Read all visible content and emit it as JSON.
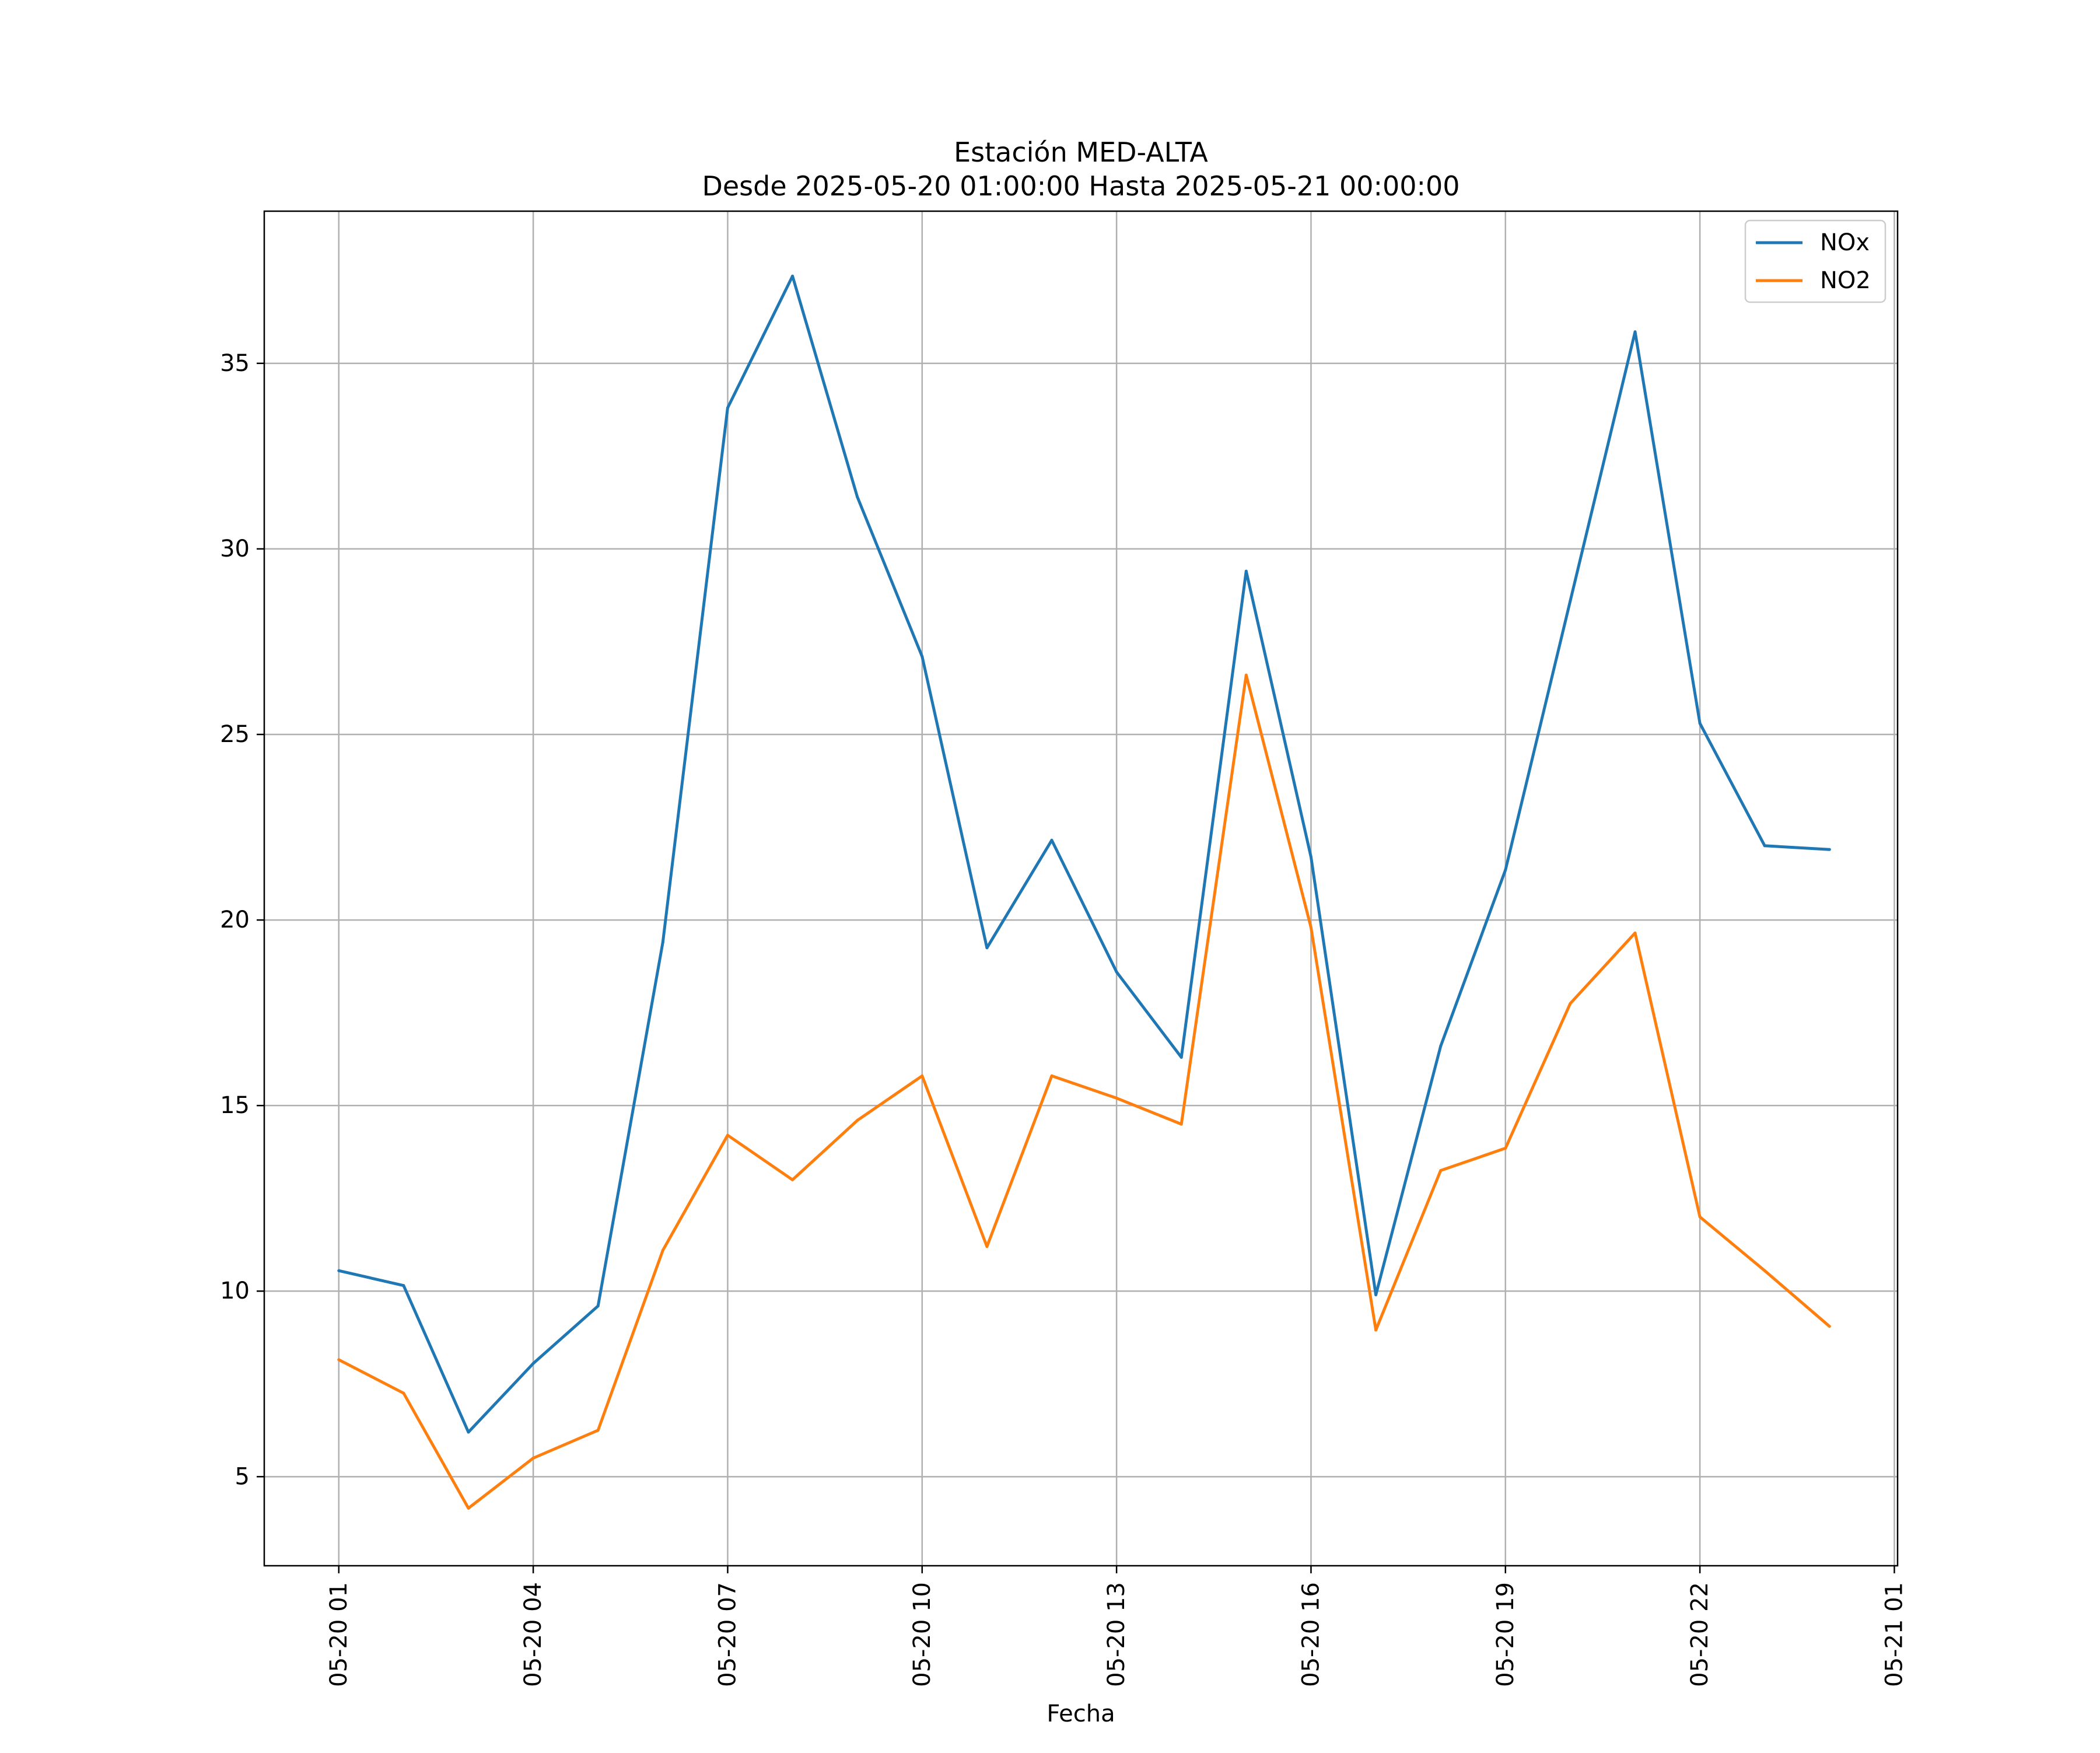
{
  "chart_data": {
    "type": "line",
    "title": "Estación MED-ALTA",
    "subtitle": "Desde 2025-05-20 01:00:00 Hasta 2025-05-21 00:00:00",
    "xlabel": "Fecha",
    "ylabel": "",
    "x": [
      "2025-05-20 01:00",
      "2025-05-20 02:00",
      "2025-05-20 03:00",
      "2025-05-20 04:00",
      "2025-05-20 05:00",
      "2025-05-20 06:00",
      "2025-05-20 07:00",
      "2025-05-20 08:00",
      "2025-05-20 09:00",
      "2025-05-20 10:00",
      "2025-05-20 11:00",
      "2025-05-20 12:00",
      "2025-05-20 13:00",
      "2025-05-20 14:00",
      "2025-05-20 15:00",
      "2025-05-20 16:00",
      "2025-05-20 17:00",
      "2025-05-20 18:00",
      "2025-05-20 19:00",
      "2025-05-20 20:00",
      "2025-05-20 21:00",
      "2025-05-20 22:00",
      "2025-05-20 23:00",
      "2025-05-21 00:00"
    ],
    "series": [
      {
        "name": "NOx",
        "color": "#1f77b4",
        "values": [
          10.55,
          10.15,
          6.2,
          8.05,
          9.6,
          19.4,
          33.8,
          37.35,
          31.4,
          27.1,
          19.25,
          22.15,
          18.6,
          16.3,
          29.4,
          21.7,
          9.9,
          16.6,
          21.35,
          28.6,
          35.85,
          25.3,
          22.0,
          21.9
        ]
      },
      {
        "name": "NO2",
        "color": "#ff7f0e",
        "values": [
          8.15,
          7.25,
          4.15,
          5.5,
          6.25,
          11.1,
          14.2,
          13.0,
          14.6,
          15.8,
          11.2,
          15.8,
          15.2,
          14.5,
          26.6,
          19.8,
          8.95,
          13.25,
          13.85,
          17.75,
          19.65,
          12.0,
          10.55,
          9.05
        ]
      }
    ],
    "xticks": [
      {
        "label": "05-20 01",
        "hour": 1
      },
      {
        "label": "05-20 04",
        "hour": 4
      },
      {
        "label": "05-20 07",
        "hour": 7
      },
      {
        "label": "05-20 10",
        "hour": 10
      },
      {
        "label": "05-20 13",
        "hour": 13
      },
      {
        "label": "05-20 16",
        "hour": 16
      },
      {
        "label": "05-20 19",
        "hour": 19
      },
      {
        "label": "05-20 22",
        "hour": 22
      },
      {
        "label": "05-21 01",
        "hour": 25
      }
    ],
    "yticks": [
      5,
      10,
      15,
      20,
      25,
      30,
      35
    ],
    "xlim_hours": [
      -0.15,
      25.05
    ],
    "ylim": [
      2.6,
      39.1
    ],
    "grid": true,
    "legend_position": "top-right"
  }
}
